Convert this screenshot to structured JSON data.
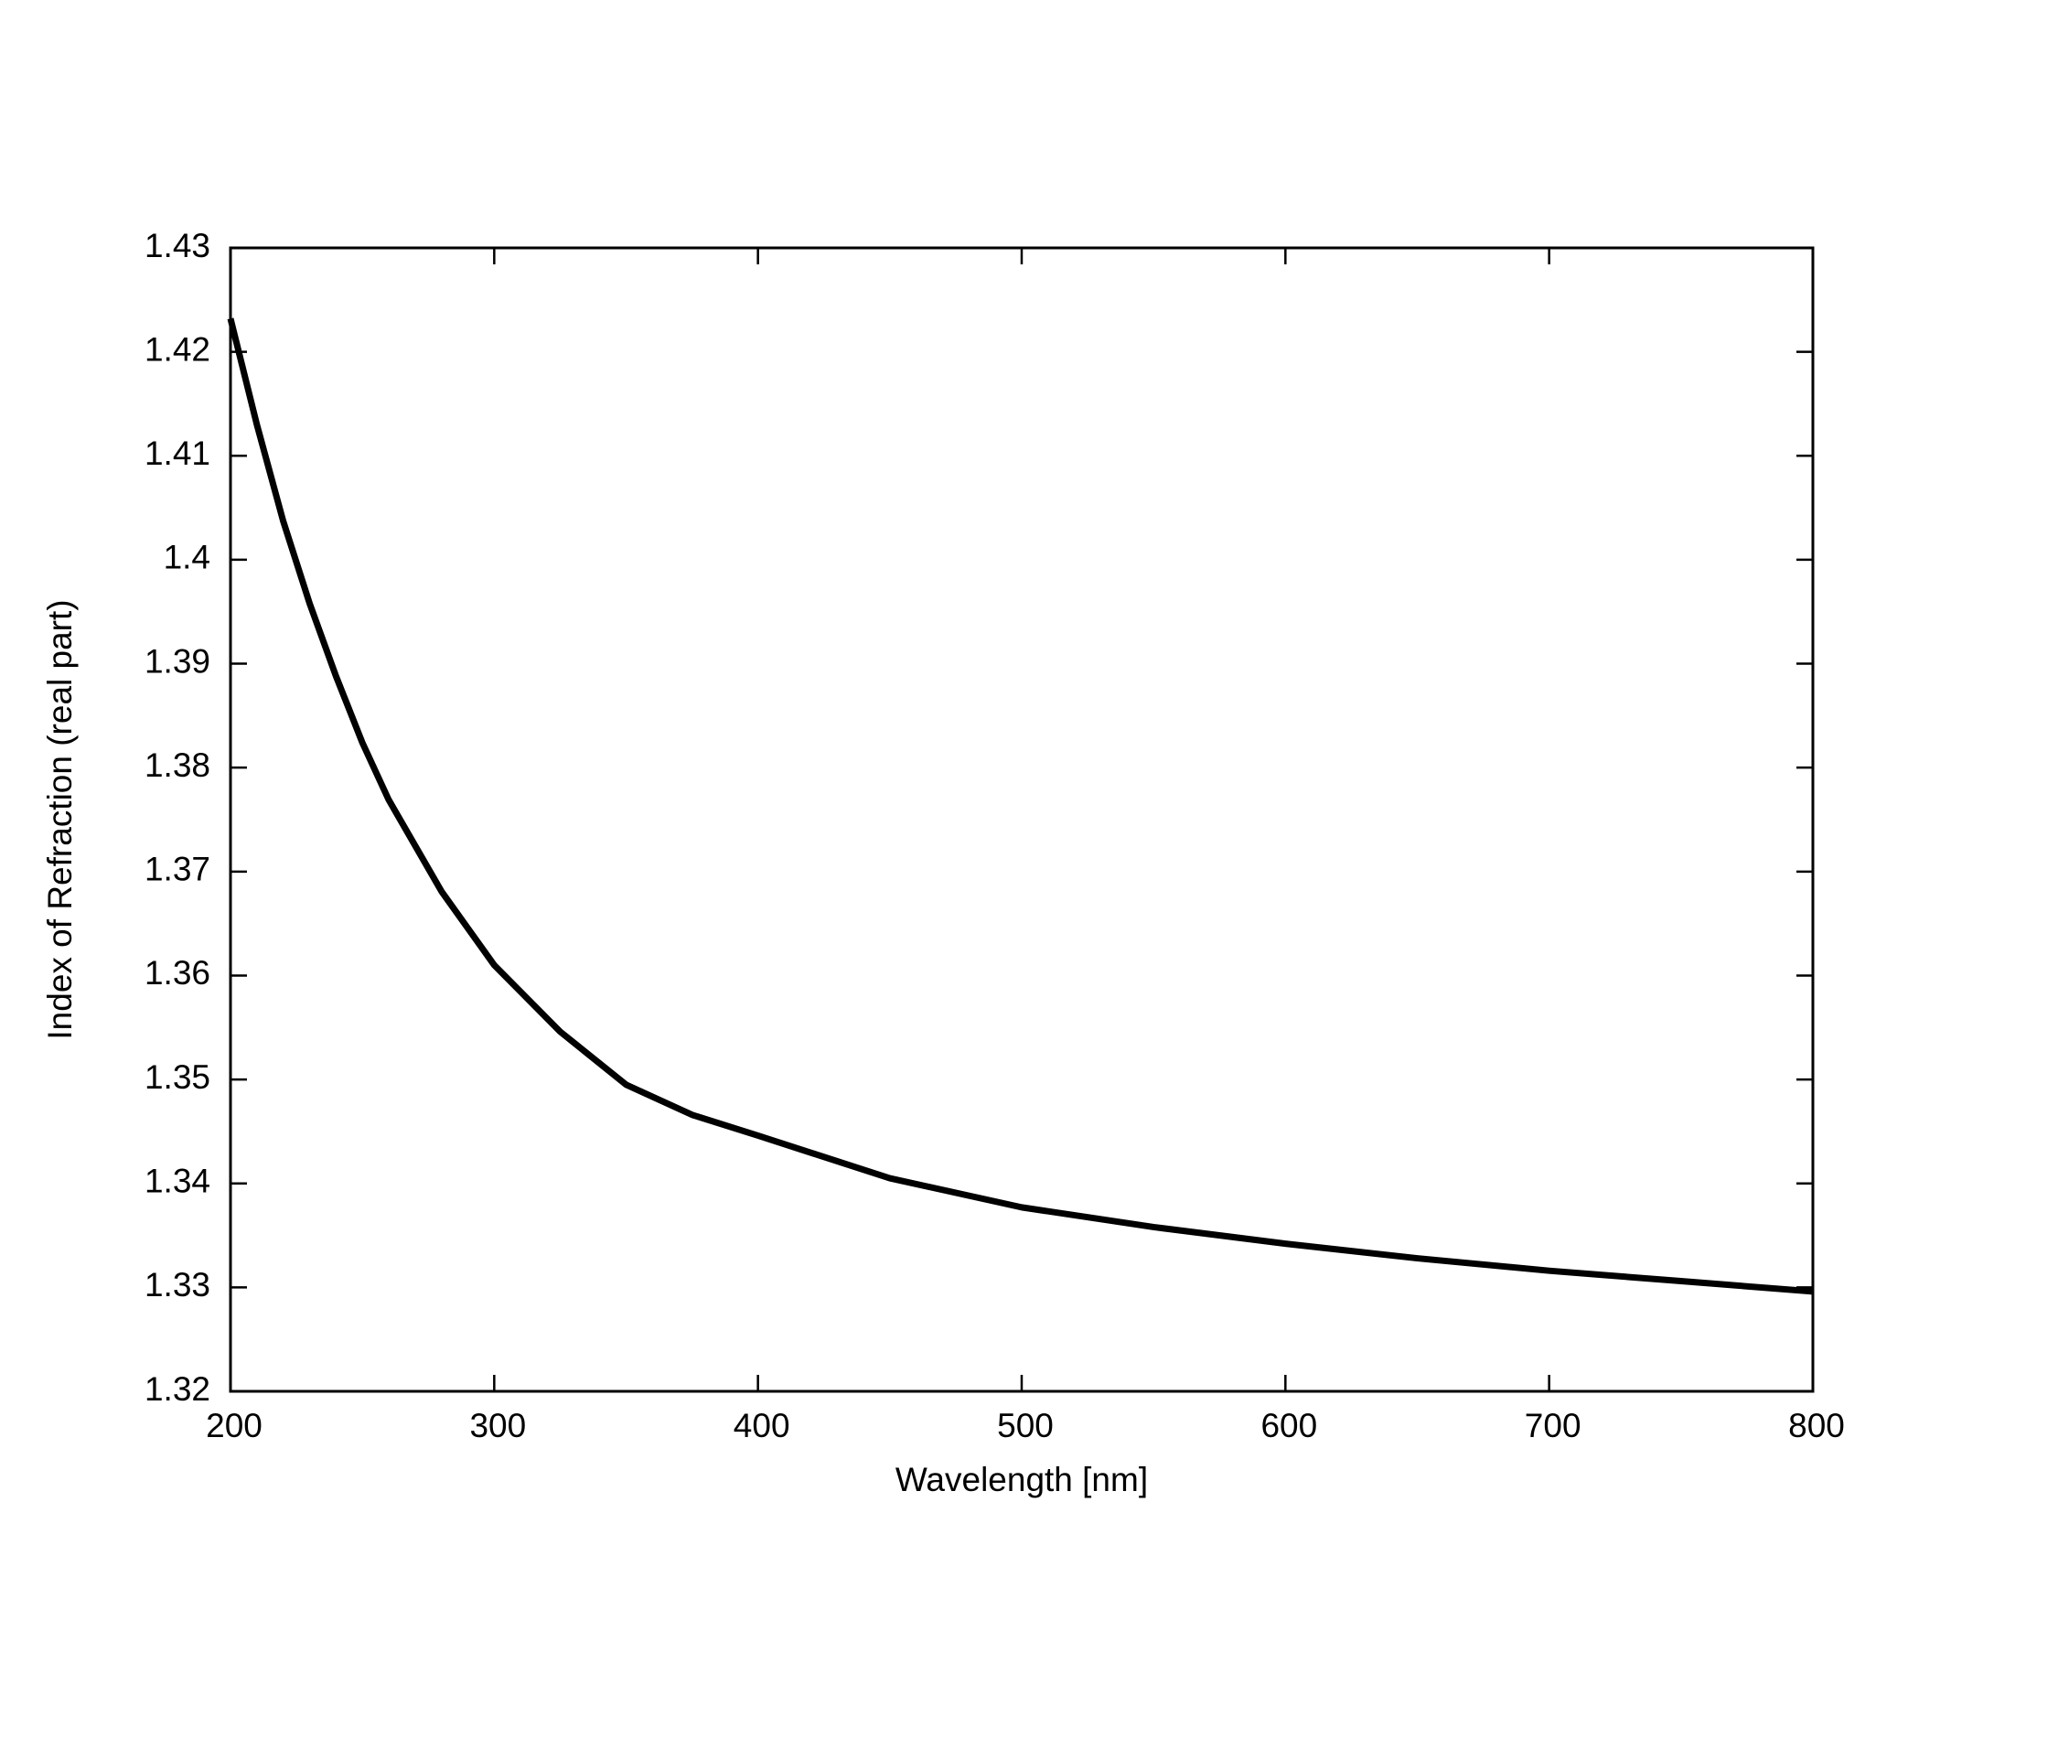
{
  "chart_data": {
    "type": "line",
    "x_label": "Wavelength [nm]",
    "y_label": "Index of Refraction (real part)",
    "x": [
      200,
      210,
      220,
      230,
      240,
      250,
      260,
      280,
      300,
      325,
      350,
      375,
      400,
      450,
      500,
      550,
      600,
      650,
      700,
      750,
      800
    ],
    "values": [
      1.4232,
      1.413,
      1.4037,
      1.3958,
      1.3888,
      1.3824,
      1.3769,
      1.3681,
      1.361,
      1.3546,
      1.3495,
      1.3466,
      1.3446,
      1.3405,
      1.3377,
      1.3358,
      1.3342,
      1.3328,
      1.3316,
      1.3306,
      1.3296
    ],
    "color": "#000000",
    "xlim": [
      200,
      800
    ],
    "xticks": [
      200,
      300,
      400,
      500,
      600,
      700,
      800
    ],
    "ylim": [
      1.32,
      1.43
    ],
    "yticks": [
      1.32,
      1.33,
      1.34,
      1.35,
      1.36,
      1.37,
      1.38,
      1.39,
      1.4,
      1.41,
      1.42,
      1.43
    ],
    "grid": false
  }
}
